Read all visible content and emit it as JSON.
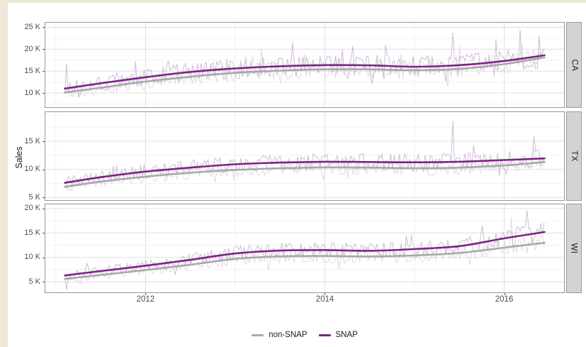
{
  "page": {
    "margin_color": "#ece7d6",
    "sheet_color": "#ffffff"
  },
  "chart_data": {
    "type": "line",
    "title": "",
    "y_axis_title": "Sales",
    "grid": true,
    "legend_position": "bottom",
    "colors": {
      "snap_smooth": "#7b2483",
      "non_snap_smooth": "#a8a8a8",
      "snap_raw": "#c09ccc",
      "non_snap_raw": "#d8d8d8",
      "grid_major": "#e1e1e1",
      "grid_minor": "#efefef",
      "panel_border": "#969696",
      "strip_bg": "#d3d3d3"
    },
    "x_axis": {
      "range": [
        2010.875,
        2016.675
      ],
      "major_ticks": [
        {
          "v": 2012,
          "label": "2012"
        },
        {
          "v": 2014,
          "label": "2014"
        },
        {
          "v": 2016,
          "label": "2016"
        }
      ],
      "minor_ticks": [
        2011,
        2013,
        2015
      ]
    },
    "sampling": {
      "x_start": 2011.1,
      "x_end": 2016.45,
      "per_year": 52,
      "spike_prob": 0.05
    },
    "legend": [
      {
        "name": "non-SNAP",
        "color": "#a8a8a8"
      },
      {
        "name": "SNAP",
        "color": "#7b2483"
      }
    ],
    "facets": [
      {
        "label": "CA",
        "ylim": [
          6.6,
          26.2
        ],
        "yticks": [
          {
            "v": 10,
            "label": "10 K"
          },
          {
            "v": 15,
            "label": "15 K"
          },
          {
            "v": 20,
            "label": "20 K"
          },
          {
            "v": 25,
            "label": "25 K"
          }
        ],
        "yminor": [
          7.5,
          12.5,
          17.5,
          22.5
        ],
        "series": [
          {
            "name": "non-SNAP",
            "seed": 12,
            "noise": 1.9,
            "trend": [
              [
                2011.1,
                10.1
              ],
              [
                2011.5,
                11.2
              ],
              [
                2012,
                12.6
              ],
              [
                2012.5,
                13.7
              ],
              [
                2013,
                14.6
              ],
              [
                2013.5,
                15.1
              ],
              [
                2014,
                15.4
              ],
              [
                2014.5,
                15.4
              ],
              [
                2015,
                15.2
              ],
              [
                2015.5,
                15.5
              ],
              [
                2016,
                16.6
              ],
              [
                2016.45,
                18.1
              ]
            ],
            "spikes": [
              [
                2013.3,
                20.2
              ],
              [
                2015.5,
                21.0
              ],
              [
                2016.2,
                21.3
              ]
            ]
          },
          {
            "name": "SNAP",
            "seed": 11,
            "noise": 2.3,
            "trend": [
              [
                2011.1,
                11.0
              ],
              [
                2011.5,
                12.2
              ],
              [
                2012,
                13.6
              ],
              [
                2012.5,
                14.8
              ],
              [
                2013,
                15.6
              ],
              [
                2013.5,
                16.1
              ],
              [
                2014,
                16.35
              ],
              [
                2014.5,
                16.3
              ],
              [
                2015,
                16.0
              ],
              [
                2015.5,
                16.35
              ],
              [
                2016,
                17.3
              ],
              [
                2016.45,
                18.6
              ]
            ],
            "spikes": [
              [
                2011.12,
                16.8
              ],
              [
                2013.63,
                21.5
              ],
              [
                2015.42,
                23.8
              ],
              [
                2015.9,
                22.3
              ],
              [
                2016.17,
                24.4
              ],
              [
                2016.38,
                23.0
              ]
            ]
          }
        ]
      },
      {
        "label": "TX",
        "ylim": [
          4.4,
          20.3
        ],
        "yticks": [
          {
            "v": 5,
            "label": "5 K"
          },
          {
            "v": 10,
            "label": "10 K"
          },
          {
            "v": 15,
            "label": "15 K"
          }
        ],
        "yminor": [
          7.5,
          12.5,
          17.5
        ],
        "series": [
          {
            "name": "non-SNAP",
            "seed": 22,
            "noise": 1.2,
            "trend": [
              [
                2011.1,
                6.9
              ],
              [
                2011.5,
                7.8
              ],
              [
                2012,
                8.7
              ],
              [
                2012.5,
                9.4
              ],
              [
                2013,
                9.9
              ],
              [
                2013.5,
                10.2
              ],
              [
                2014,
                10.35
              ],
              [
                2014.5,
                10.3
              ],
              [
                2015,
                10.2
              ],
              [
                2015.5,
                10.3
              ],
              [
                2016,
                10.7
              ],
              [
                2016.45,
                11.3
              ]
            ],
            "spikes": []
          },
          {
            "name": "SNAP",
            "seed": 21,
            "noise": 1.4,
            "trend": [
              [
                2011.1,
                7.6
              ],
              [
                2011.5,
                8.6
              ],
              [
                2012,
                9.6
              ],
              [
                2012.5,
                10.3
              ],
              [
                2013,
                10.9
              ],
              [
                2013.5,
                11.2
              ],
              [
                2014,
                11.35
              ],
              [
                2014.5,
                11.3
              ],
              [
                2015,
                11.25
              ],
              [
                2015.5,
                11.35
              ],
              [
                2016,
                11.65
              ],
              [
                2016.45,
                11.95
              ]
            ],
            "spikes": [
              [
                2015.42,
                18.6
              ],
              [
                2016.33,
                15.9
              ]
            ]
          }
        ]
      },
      {
        "label": "WI",
        "ylim": [
          2.7,
          21.0
        ],
        "yticks": [
          {
            "v": 5,
            "label": "5 K"
          },
          {
            "v": 10,
            "label": "10 K"
          },
          {
            "v": 15,
            "label": "15 K"
          },
          {
            "v": 20,
            "label": "20 K"
          }
        ],
        "yminor": [
          7.5,
          12.5,
          17.5
        ],
        "series": [
          {
            "name": "non-SNAP",
            "seed": 32,
            "noise": 1.3,
            "trend": [
              [
                2011.1,
                5.6
              ],
              [
                2011.5,
                6.4
              ],
              [
                2012,
                7.4
              ],
              [
                2012.5,
                8.5
              ],
              [
                2013,
                9.7
              ],
              [
                2013.5,
                10.2
              ],
              [
                2014,
                10.3
              ],
              [
                2014.5,
                10.2
              ],
              [
                2015,
                10.4
              ],
              [
                2015.5,
                10.9
              ],
              [
                2016,
                12.0
              ],
              [
                2016.45,
                13.0
              ]
            ],
            "spikes": [
              [
                2016.08,
                18.3
              ]
            ]
          },
          {
            "name": "SNAP",
            "seed": 31,
            "noise": 1.5,
            "trend": [
              [
                2011.1,
                6.3
              ],
              [
                2011.5,
                7.2
              ],
              [
                2012,
                8.3
              ],
              [
                2012.5,
                9.5
              ],
              [
                2013,
                10.8
              ],
              [
                2013.5,
                11.4
              ],
              [
                2014,
                11.5
              ],
              [
                2014.5,
                11.35
              ],
              [
                2015,
                11.7
              ],
              [
                2015.5,
                12.3
              ],
              [
                2016,
                13.9
              ],
              [
                2016.45,
                15.2
              ]
            ],
            "spikes": [
              [
                2011.12,
                3.4
              ],
              [
                2015.75,
                16.5
              ],
              [
                2016.25,
                19.6
              ]
            ]
          }
        ]
      }
    ]
  }
}
